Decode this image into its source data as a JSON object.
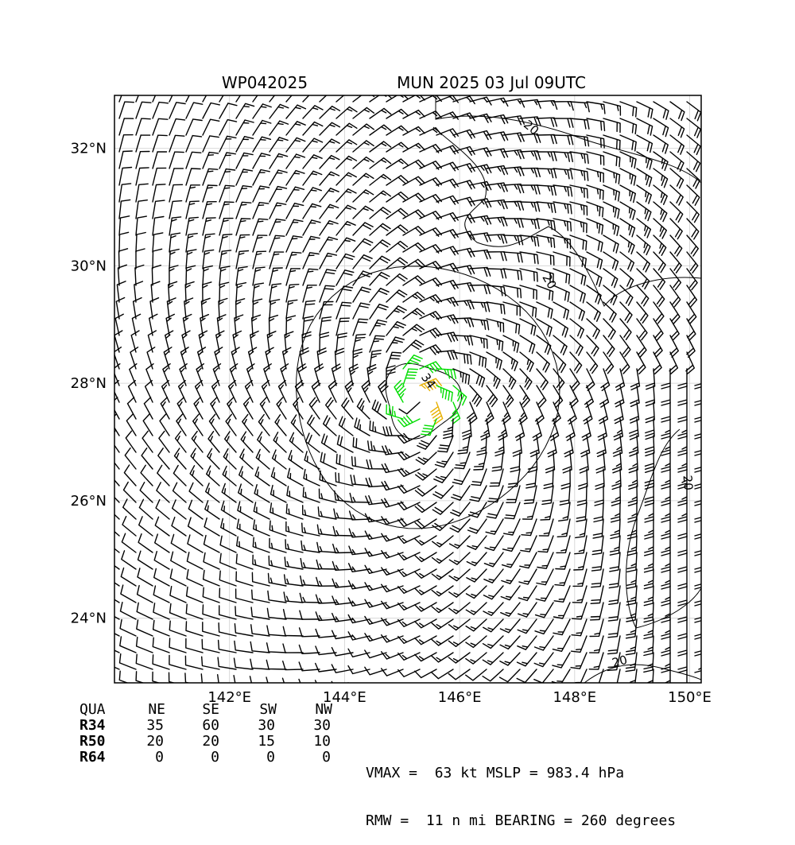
{
  "chart_data": {
    "type": "wind-barb-map",
    "title_left": "WP042025",
    "title_right": "MUN 2025 03 Jul 09UTC",
    "lon_range": [
      140.0,
      150.2
    ],
    "lat_range": [
      22.9,
      32.9
    ],
    "x_ticks": [
      "142°E",
      "144°E",
      "146°E",
      "148°E",
      "150°E"
    ],
    "x_tick_values": [
      142,
      144,
      146,
      148,
      150
    ],
    "y_ticks": [
      "24°N",
      "26°N",
      "28°N",
      "30°N",
      "32°N"
    ],
    "y_tick_values": [
      24,
      26,
      28,
      30,
      32
    ],
    "grid": true,
    "center": {
      "lon": 145.3,
      "lat": 27.7
    },
    "vmax_kt": 63,
    "rmw_nmi": 11,
    "barb_colors": {
      "lt34": "#000000",
      "r34": "#00dd00",
      "r50": "#e8b000"
    },
    "contour_labels": [
      {
        "text": "34",
        "lon": 145.4,
        "lat": 28.0,
        "angle": 55
      },
      {
        "text": "20",
        "lon": 147.2,
        "lat": 32.3,
        "angle": 40
      },
      {
        "text": "20",
        "lon": 147.5,
        "lat": 29.7,
        "angle": 60
      },
      {
        "text": "20",
        "lon": 149.9,
        "lat": 26.3,
        "angle": 85
      },
      {
        "text": "20",
        "lon": 148.8,
        "lat": 23.2,
        "angle": -15
      }
    ]
  },
  "quadrants": {
    "header": [
      "QUA",
      "NE",
      "SE",
      "SW",
      "NW"
    ],
    "rows": [
      {
        "label": "R34",
        "values": [
          "35",
          "60",
          "30",
          "30"
        ]
      },
      {
        "label": "R50",
        "values": [
          "20",
          "20",
          "15",
          "10"
        ]
      },
      {
        "label": "R64",
        "values": [
          "0",
          "0",
          "0",
          "0"
        ]
      }
    ]
  },
  "stats": {
    "line1": "VMAX =  63 kt MSLP = 983.4 hPa",
    "line2": "RMW =  11 n mi BEARING = 260 degrees"
  }
}
